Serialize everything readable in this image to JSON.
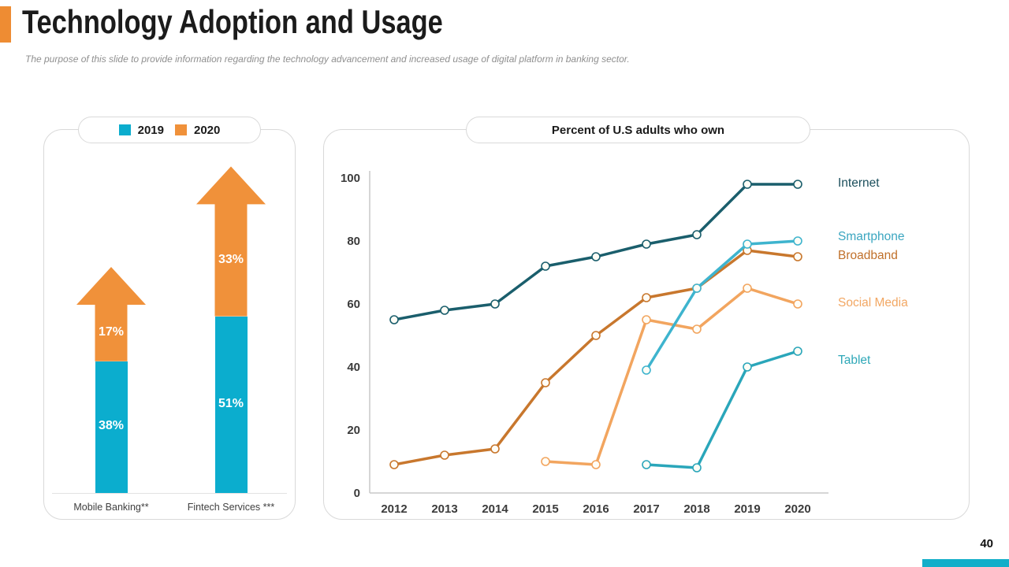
{
  "slide": {
    "title": "Technology Adoption and Usage",
    "subtitle": "The purpose of this slide to provide information regarding the technology advancement and increased usage of digital platform in banking sector.",
    "page_number": "40",
    "accent_color": "#EE8C33",
    "footer_strip_color": "#12AEC9"
  },
  "chart_data": [
    {
      "type": "bar",
      "stacked": true,
      "legend": [
        {
          "label": "2019",
          "color": "#0BADCE"
        },
        {
          "label": "2020",
          "color": "#F0913A"
        }
      ],
      "categories": [
        "Mobile Banking**",
        "Fintech Services ***"
      ],
      "series": [
        {
          "name": "2019",
          "color": "#0BADCE",
          "values": [
            38,
            51
          ],
          "labels": [
            "38%",
            "51%"
          ]
        },
        {
          "name": "2020",
          "color": "#F0913A",
          "values": [
            17,
            33
          ],
          "labels": [
            "17%",
            "33%"
          ],
          "style": "up-arrow"
        }
      ],
      "value_suffix": "%",
      "grid": false
    },
    {
      "type": "line",
      "title": "Percent of U.S adults who own",
      "x": [
        2012,
        2013,
        2014,
        2015,
        2016,
        2017,
        2018,
        2019,
        2020
      ],
      "ylim": [
        0,
        100
      ],
      "yticks": [
        0,
        20,
        40,
        60,
        80,
        100
      ],
      "legend_position": "right",
      "grid": false,
      "axis_color": "#c9c9c9",
      "tick_label_color": "#3b3b3b",
      "series": [
        {
          "name": "Internet",
          "color": "#1A5E6C",
          "label_color": "#1C4F5C",
          "start_x": 2012,
          "values": [
            55,
            58,
            60,
            72,
            75,
            79,
            82,
            98,
            98
          ],
          "label_dy": 0
        },
        {
          "name": "Broadband",
          "color": "#C8772D",
          "label_color": "#C0702A",
          "start_x": 2012,
          "values": [
            9,
            12,
            14,
            35,
            50,
            62,
            65,
            77,
            75
          ],
          "label_dy": 0
        },
        {
          "name": "Social Media",
          "color": "#F2A55F",
          "label_color": "#F2A763",
          "start_x": 2015,
          "values": [
            10,
            9,
            55,
            52,
            65,
            60
          ],
          "label_dy": 0
        },
        {
          "name": "Smartphone",
          "color": "#3EB4CE",
          "label_color": "#3BA6C0",
          "start_x": 2017,
          "values": [
            39,
            65,
            79,
            80
          ],
          "label_dy": -4
        },
        {
          "name": "Tablet",
          "color": "#2AA6BA",
          "label_color": "#2FA8B8",
          "start_x": 2017,
          "values": [
            9,
            8,
            40,
            45
          ],
          "label_dy": 13
        }
      ]
    }
  ]
}
